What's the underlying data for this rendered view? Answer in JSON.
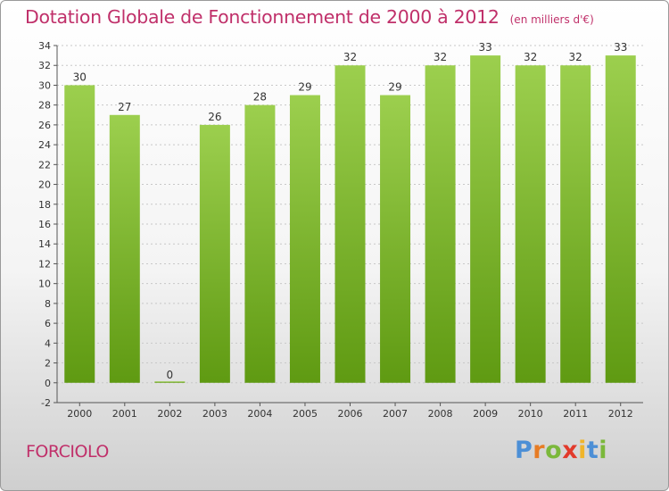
{
  "chart_data": {
    "type": "bar",
    "title": "Dotation Globale de Fonctionnement de 2000 à 2012",
    "unit": "(en milliers d'€)",
    "categories": [
      "2000",
      "2001",
      "2002",
      "2003",
      "2004",
      "2005",
      "2006",
      "2007",
      "2008",
      "2009",
      "2010",
      "2011",
      "2012"
    ],
    "values": [
      30,
      27,
      0,
      26,
      28,
      29,
      32,
      29,
      32,
      33,
      32,
      32,
      33
    ],
    "value_labels": [
      "30",
      "27",
      "0",
      "26",
      "28",
      "29",
      "32",
      "29",
      "32",
      "33",
      "32",
      "32",
      "33"
    ],
    "ylim": [
      -2,
      34
    ],
    "yticks": [
      -2,
      0,
      2,
      4,
      6,
      8,
      10,
      12,
      14,
      16,
      18,
      20,
      22,
      24,
      26,
      28,
      30,
      32,
      34
    ],
    "ytick_labels": [
      "-2",
      "0",
      "2",
      "4",
      "6",
      "8",
      "10",
      "12",
      "14",
      "16",
      "18",
      "20",
      "22",
      "24",
      "26",
      "28",
      "30",
      "32",
      "34"
    ],
    "grid": "horizontal",
    "bar_color_top": "#9ccf4e",
    "bar_color_bottom": "#5f9a12"
  },
  "footer": {
    "commune": "FORCIOLO",
    "brand_letters": [
      "P",
      "r",
      "o",
      "x",
      "i",
      "t",
      "i"
    ],
    "brand_colors": [
      "#4c8fd6",
      "#e77c24",
      "#7bb83b",
      "#e23a2b",
      "#f0b52a",
      "#4c8fd6",
      "#7bb83b"
    ]
  }
}
